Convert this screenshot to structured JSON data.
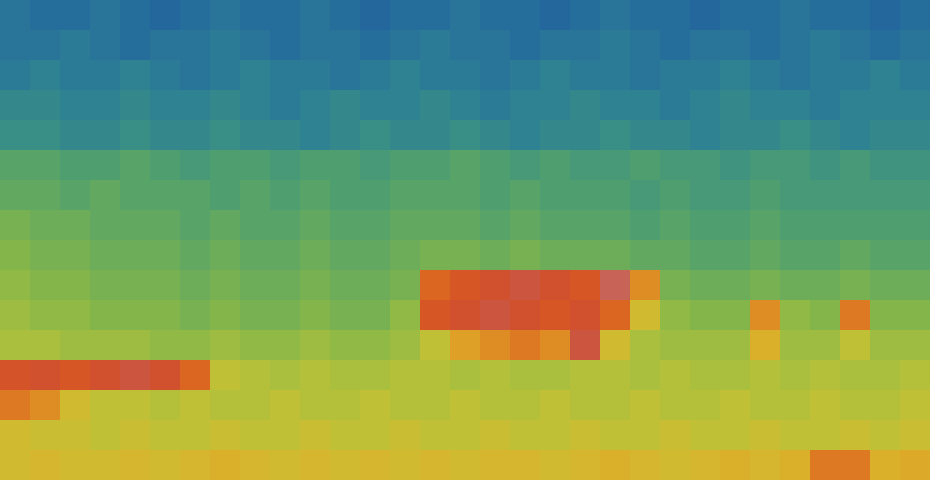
{
  "chart_data": {
    "type": "heatmap",
    "tick_labels": false,
    "x": [
      0,
      1,
      2,
      3,
      4,
      5,
      6,
      7,
      8,
      9,
      10,
      11,
      12,
      13,
      14,
      15,
      16,
      17,
      18,
      19,
      20,
      21,
      22,
      23,
      24,
      25,
      26,
      27,
      28,
      29,
      30
    ],
    "y": [
      0,
      1,
      2,
      3,
      4,
      5,
      6,
      7,
      8,
      9,
      10,
      11,
      12,
      13,
      14,
      15
    ],
    "zlim": [
      -90,
      -35
    ],
    "values": [
      [
        -77,
        -78,
        -78,
        -77,
        -78,
        -79,
        -78,
        -77,
        -78,
        -78,
        -77,
        -78,
        -79,
        -78,
        -78,
        -77,
        -78,
        -78,
        -79,
        -78,
        -77,
        -78,
        -78,
        -79,
        -78,
        -78,
        -77,
        -78,
        -78,
        -79,
        -78
      ],
      [
        -77,
        -77,
        -76,
        -77,
        -78,
        -77,
        -77,
        -76,
        -77,
        -78,
        -77,
        -77,
        -78,
        -77,
        -76,
        -77,
        -77,
        -78,
        -77,
        -77,
        -76,
        -77,
        -78,
        -77,
        -77,
        -78,
        -77,
        -76,
        -77,
        -78,
        -77
      ],
      [
        -76,
        -75,
        -76,
        -76,
        -75,
        -76,
        -77,
        -76,
        -75,
        -76,
        -76,
        -77,
        -76,
        -75,
        -76,
        -76,
        -77,
        -76,
        -75,
        -76,
        -76,
        -77,
        -76,
        -76,
        -75,
        -76,
        -77,
        -76,
        -76,
        -75,
        -76
      ],
      [
        -74,
        -74,
        -75,
        -75,
        -74,
        -75,
        -75,
        -74,
        -75,
        -76,
        -75,
        -74,
        -75,
        -75,
        -74,
        -75,
        -76,
        -75,
        -75,
        -74,
        -75,
        -75,
        -76,
        -75,
        -74,
        -75,
        -75,
        -76,
        -75,
        -75,
        -75
      ],
      [
        -73,
        -73,
        -74,
        -74,
        -73,
        -74,
        -74,
        -73,
        -74,
        -74,
        -75,
        -74,
        -73,
        -74,
        -74,
        -73,
        -74,
        -75,
        -74,
        -74,
        -73,
        -74,
        -74,
        -75,
        -74,
        -74,
        -73,
        -74,
        -75,
        -74,
        -74
      ],
      [
        -69,
        -69,
        -70,
        -70,
        -69,
        -70,
        -71,
        -70,
        -70,
        -71,
        -70,
        -70,
        -71,
        -70,
        -70,
        -69,
        -70,
        -71,
        -70,
        -71,
        -71,
        -70,
        -71,
        -71,
        -72,
        -71,
        -71,
        -72,
        -71,
        -72,
        -72
      ],
      [
        -68,
        -68,
        -69,
        -68,
        -69,
        -69,
        -69,
        -70,
        -69,
        -70,
        -69,
        -70,
        -70,
        -69,
        -69,
        -69,
        -70,
        -69,
        -70,
        -70,
        -70,
        -71,
        -70,
        -71,
        -71,
        -70,
        -71,
        -71,
        -71,
        -71,
        -71
      ],
      [
        -66,
        -67,
        -67,
        -68,
        -68,
        -68,
        -69,
        -68,
        -69,
        -69,
        -68,
        -69,
        -69,
        -68,
        -68,
        -68,
        -69,
        -68,
        -69,
        -69,
        -69,
        -70,
        -69,
        -70,
        -70,
        -69,
        -70,
        -70,
        -70,
        -70,
        -70
      ],
      [
        -65,
        -66,
        -66,
        -67,
        -67,
        -67,
        -68,
        -67,
        -68,
        -68,
        -67,
        -68,
        -68,
        -67,
        -66,
        -66,
        -67,
        -66,
        -67,
        -67,
        -67,
        -68,
        -68,
        -69,
        -69,
        -68,
        -69,
        -69,
        -68,
        -69,
        -69
      ],
      [
        -64,
        -65,
        -65,
        -66,
        -66,
        -66,
        -67,
        -66,
        -67,
        -67,
        -66,
        -67,
        -67,
        -66,
        -48,
        -46,
        -44,
        -42,
        -44,
        -46,
        -40,
        -52,
        -66,
        -67,
        -67,
        -66,
        -67,
        -67,
        -66,
        -67,
        -67
      ],
      [
        -63,
        -64,
        -64,
        -65,
        -65,
        -65,
        -66,
        -65,
        -66,
        -66,
        -65,
        -66,
        -66,
        -64,
        -46,
        -44,
        -42,
        -44,
        -46,
        -44,
        -48,
        -58,
        -64,
        -65,
        -65,
        -52,
        -64,
        -65,
        -50,
        -65,
        -65
      ],
      [
        -62,
        -62,
        -63,
        -63,
        -63,
        -64,
        -64,
        -63,
        -64,
        -64,
        -63,
        -64,
        -64,
        -63,
        -60,
        -54,
        -52,
        -50,
        -52,
        -42,
        -58,
        -62,
        -63,
        -63,
        -63,
        -56,
        -63,
        -63,
        -60,
        -63,
        -63
      ],
      [
        -45,
        -44,
        -46,
        -44,
        -42,
        -44,
        -48,
        -60,
        -61,
        -62,
        -61,
        -62,
        -62,
        -61,
        -61,
        -62,
        -61,
        -62,
        -62,
        -61,
        -61,
        -62,
        -61,
        -62,
        -62,
        -61,
        -62,
        -61,
        -62,
        -62,
        -61
      ],
      [
        -50,
        -52,
        -58,
        -60,
        -60,
        -61,
        -60,
        -61,
        -61,
        -60,
        -61,
        -61,
        -60,
        -61,
        -61,
        -60,
        -61,
        -61,
        -60,
        -61,
        -61,
        -60,
        -61,
        -61,
        -60,
        -61,
        -61,
        -60,
        -61,
        -61,
        -60
      ],
      [
        -58,
        -59,
        -59,
        -60,
        -59,
        -60,
        -60,
        -59,
        -60,
        -60,
        -59,
        -60,
        -60,
        -59,
        -60,
        -60,
        -59,
        -60,
        -60,
        -59,
        -60,
        -60,
        -59,
        -60,
        -60,
        -59,
        -60,
        -60,
        -59,
        -60,
        -59
      ],
      [
        -58,
        -57,
        -58,
        -58,
        -57,
        -58,
        -57,
        -56,
        -57,
        -58,
        -57,
        -58,
        -57,
        -58,
        -57,
        -58,
        -57,
        -57,
        -58,
        -57,
        -56,
        -57,
        -58,
        -57,
        -56,
        -57,
        -56,
        -50,
        -50,
        -56,
        -55
      ]
    ]
  }
}
